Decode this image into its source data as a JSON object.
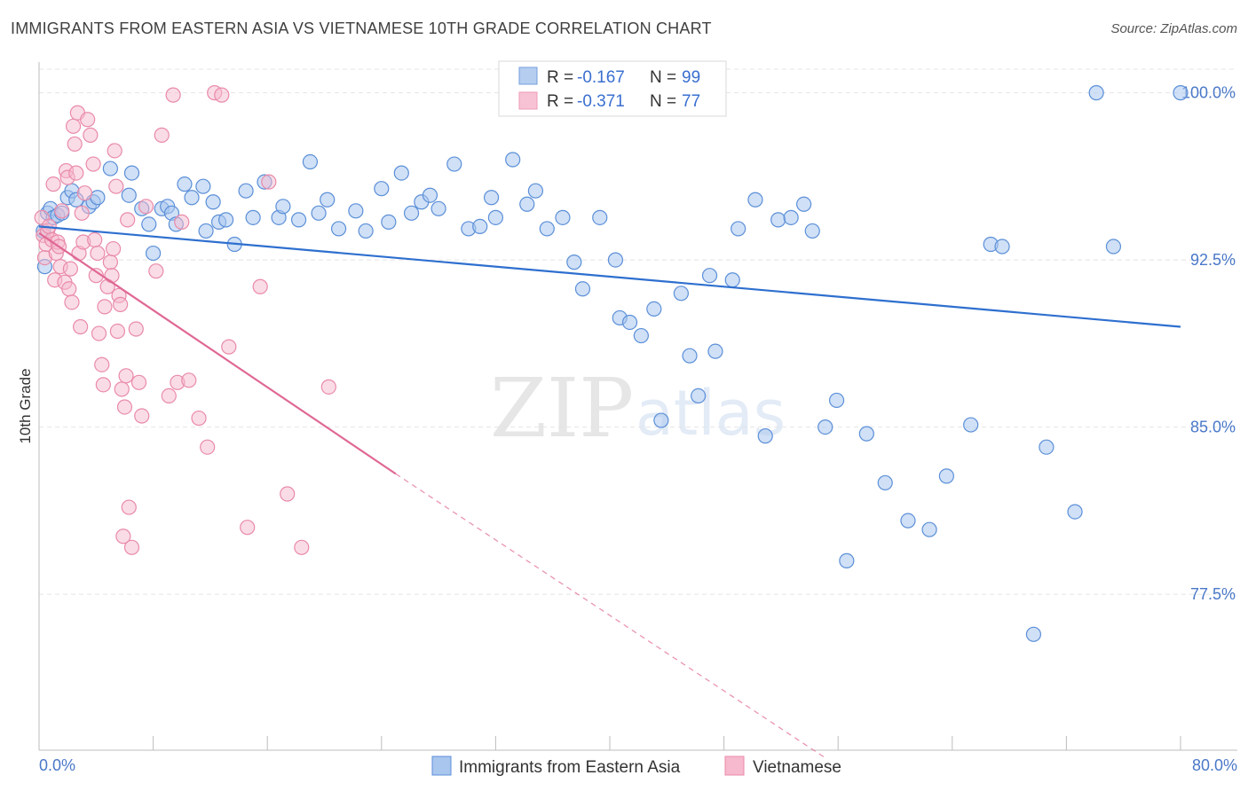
{
  "title": "IMMIGRANTS FROM EASTERN ASIA VS VIETNAMESE 10TH GRADE CORRELATION CHART",
  "source": "Source: ZipAtlas.com",
  "watermark": {
    "zip": "ZIP",
    "atlas": "atlas"
  },
  "colors": {
    "blue_fill": "#a9c6ee",
    "blue_stroke": "#5b8fd8",
    "blue_line": "#2e6fcf",
    "pink_fill": "#f6b9cd",
    "pink_stroke": "#e98aa9",
    "pink_line": "#e06894",
    "grid": "#e4e4e4",
    "tick_text": "#4a78c8"
  },
  "legend": {
    "rows": [
      {
        "r_label": "R =",
        "r_value": "-0.167",
        "n_label": "N =",
        "n_value": "99"
      },
      {
        "r_label": "R =",
        "r_value": "-0.371",
        "n_label": "N =",
        "n_value": "77"
      }
    ]
  },
  "bottom_legend": [
    "Immigrants from Eastern Asia",
    "Vietnamese"
  ],
  "chart_data": {
    "type": "scatter",
    "title": "IMMIGRANTS FROM EASTERN ASIA VS VIETNAMESE 10TH GRADE CORRELATION CHART",
    "xlabel": "",
    "ylabel": "10th Grade",
    "xlim": [
      0,
      80
    ],
    "ylim": [
      70.5,
      100.9
    ],
    "x_tick_labels": [
      "0.0%",
      "80.0%"
    ],
    "y_ticks": [
      77.5,
      85.0,
      92.5,
      100.0
    ],
    "y_tick_labels": [
      "77.5%",
      "85.0%",
      "92.5%",
      "100.0%"
    ],
    "series": [
      {
        "name": "Immigrants from Eastern Asia",
        "R": -0.167,
        "N": 99,
        "trend": {
          "x": [
            0,
            80
          ],
          "y": [
            94.0,
            89.5
          ]
        },
        "points": [
          [
            0.3,
            93.8
          ],
          [
            0.4,
            92.2
          ],
          [
            0.6,
            94.6
          ],
          [
            0.8,
            94.8
          ],
          [
            1.0,
            94.4
          ],
          [
            1.3,
            94.5
          ],
          [
            1.6,
            94.6
          ],
          [
            2.0,
            95.3
          ],
          [
            2.3,
            95.6
          ],
          [
            2.6,
            95.2
          ],
          [
            3.5,
            94.9
          ],
          [
            3.8,
            95.1
          ],
          [
            4.1,
            95.3
          ],
          [
            5.0,
            96.6
          ],
          [
            6.3,
            95.4
          ],
          [
            6.5,
            96.4
          ],
          [
            7.2,
            94.8
          ],
          [
            7.7,
            94.1
          ],
          [
            8.0,
            92.8
          ],
          [
            8.6,
            94.8
          ],
          [
            9.0,
            94.9
          ],
          [
            9.3,
            94.6
          ],
          [
            9.6,
            94.1
          ],
          [
            10.2,
            95.9
          ],
          [
            10.7,
            95.3
          ],
          [
            11.5,
            95.8
          ],
          [
            11.7,
            93.8
          ],
          [
            12.2,
            95.1
          ],
          [
            12.6,
            94.2
          ],
          [
            13.1,
            94.3
          ],
          [
            13.7,
            93.2
          ],
          [
            14.5,
            95.6
          ],
          [
            15.0,
            94.4
          ],
          [
            15.8,
            96.0
          ],
          [
            16.8,
            94.4
          ],
          [
            17.1,
            94.9
          ],
          [
            18.2,
            94.3
          ],
          [
            19.0,
            96.9
          ],
          [
            19.6,
            94.6
          ],
          [
            20.2,
            95.2
          ],
          [
            21.0,
            93.9
          ],
          [
            22.2,
            94.7
          ],
          [
            22.9,
            93.8
          ],
          [
            24.0,
            95.7
          ],
          [
            24.5,
            94.2
          ],
          [
            25.4,
            96.4
          ],
          [
            26.1,
            94.6
          ],
          [
            26.8,
            95.1
          ],
          [
            27.4,
            95.4
          ],
          [
            28.0,
            94.8
          ],
          [
            29.1,
            96.8
          ],
          [
            30.1,
            93.9
          ],
          [
            30.9,
            94.0
          ],
          [
            31.7,
            95.3
          ],
          [
            32.0,
            94.4
          ],
          [
            33.2,
            97.0
          ],
          [
            34.2,
            95.0
          ],
          [
            34.8,
            95.6
          ],
          [
            35.6,
            93.9
          ],
          [
            36.7,
            94.4
          ],
          [
            37.5,
            92.4
          ],
          [
            38.1,
            91.2
          ],
          [
            39.3,
            94.4
          ],
          [
            40.4,
            92.5
          ],
          [
            40.7,
            89.9
          ],
          [
            41.4,
            89.7
          ],
          [
            42.2,
            89.1
          ],
          [
            43.1,
            90.3
          ],
          [
            43.6,
            85.3
          ],
          [
            45.0,
            91.0
          ],
          [
            45.6,
            88.2
          ],
          [
            46.2,
            86.4
          ],
          [
            47.0,
            91.8
          ],
          [
            47.4,
            88.4
          ],
          [
            48.6,
            91.6
          ],
          [
            49.0,
            93.9
          ],
          [
            50.2,
            95.2
          ],
          [
            50.9,
            84.6
          ],
          [
            51.8,
            94.3
          ],
          [
            52.7,
            94.4
          ],
          [
            53.6,
            95.0
          ],
          [
            54.2,
            93.8
          ],
          [
            55.1,
            85.0
          ],
          [
            55.9,
            86.2
          ],
          [
            56.6,
            79.0
          ],
          [
            58.0,
            84.7
          ],
          [
            59.3,
            82.5
          ],
          [
            60.9,
            80.8
          ],
          [
            62.4,
            80.4
          ],
          [
            63.6,
            82.8
          ],
          [
            65.3,
            85.1
          ],
          [
            66.7,
            93.2
          ],
          [
            67.5,
            93.1
          ],
          [
            69.7,
            75.7
          ],
          [
            70.6,
            84.1
          ],
          [
            72.6,
            81.2
          ],
          [
            74.1,
            100.0
          ],
          [
            75.3,
            93.1
          ],
          [
            80.0,
            100.0
          ]
        ]
      },
      {
        "name": "Vietnamese",
        "R": -0.371,
        "N": 77,
        "trend": {
          "x": [
            0,
            25
          ],
          "y": [
            93.7,
            82.9
          ]
        },
        "trend_dashed": {
          "x": [
            25,
            55
          ],
          "y": [
            82.9,
            70.2
          ]
        },
        "points": [
          [
            0.2,
            94.4
          ],
          [
            0.3,
            93.6
          ],
          [
            0.4,
            92.6
          ],
          [
            0.5,
            93.2
          ],
          [
            0.6,
            93.8
          ],
          [
            0.7,
            94.0
          ],
          [
            0.9,
            93.4
          ],
          [
            1.0,
            95.9
          ],
          [
            1.1,
            91.6
          ],
          [
            1.2,
            92.8
          ],
          [
            1.3,
            93.3
          ],
          [
            1.4,
            93.1
          ],
          [
            1.5,
            92.2
          ],
          [
            1.6,
            94.7
          ],
          [
            1.8,
            91.5
          ],
          [
            1.9,
            96.5
          ],
          [
            2.0,
            96.2
          ],
          [
            2.1,
            91.2
          ],
          [
            2.2,
            92.1
          ],
          [
            2.3,
            90.6
          ],
          [
            2.4,
            98.5
          ],
          [
            2.5,
            97.7
          ],
          [
            2.6,
            96.4
          ],
          [
            2.7,
            99.1
          ],
          [
            2.8,
            92.8
          ],
          [
            2.9,
            89.5
          ],
          [
            3.0,
            94.6
          ],
          [
            3.1,
            93.3
          ],
          [
            3.2,
            95.5
          ],
          [
            3.4,
            98.8
          ],
          [
            3.6,
            98.1
          ],
          [
            3.8,
            96.8
          ],
          [
            3.9,
            93.4
          ],
          [
            4.0,
            91.8
          ],
          [
            4.1,
            92.8
          ],
          [
            4.2,
            89.2
          ],
          [
            4.4,
            87.8
          ],
          [
            4.5,
            86.9
          ],
          [
            4.6,
            90.4
          ],
          [
            4.8,
            91.3
          ],
          [
            5.0,
            92.4
          ],
          [
            5.1,
            91.8
          ],
          [
            5.2,
            93.0
          ],
          [
            5.3,
            97.4
          ],
          [
            5.4,
            95.8
          ],
          [
            5.5,
            89.3
          ],
          [
            5.6,
            90.9
          ],
          [
            5.7,
            90.5
          ],
          [
            5.8,
            86.7
          ],
          [
            5.9,
            80.1
          ],
          [
            6.0,
            85.9
          ],
          [
            6.1,
            87.3
          ],
          [
            6.2,
            94.3
          ],
          [
            6.3,
            81.4
          ],
          [
            6.5,
            79.6
          ],
          [
            6.8,
            89.4
          ],
          [
            7.0,
            87.0
          ],
          [
            7.2,
            85.5
          ],
          [
            7.5,
            94.9
          ],
          [
            8.2,
            92.0
          ],
          [
            8.6,
            98.1
          ],
          [
            9.1,
            86.4
          ],
          [
            9.4,
            99.9
          ],
          [
            9.7,
            87.0
          ],
          [
            10.0,
            94.2
          ],
          [
            10.5,
            87.1
          ],
          [
            11.2,
            85.4
          ],
          [
            11.8,
            84.1
          ],
          [
            12.3,
            100.0
          ],
          [
            12.8,
            99.9
          ],
          [
            13.3,
            88.6
          ],
          [
            14.6,
            80.5
          ],
          [
            15.5,
            91.3
          ],
          [
            16.1,
            96.0
          ],
          [
            17.4,
            82.0
          ],
          [
            18.4,
            79.6
          ],
          [
            20.3,
            86.8
          ]
        ]
      }
    ]
  }
}
